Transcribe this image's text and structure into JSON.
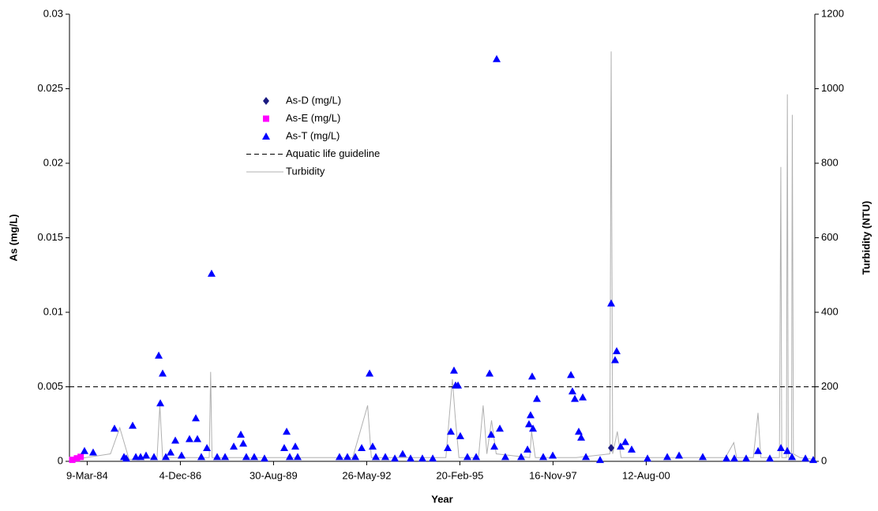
{
  "chart_data": {
    "type": "scatter",
    "x_label": "Year",
    "y_label": "As (mg/L)",
    "y2_label": "Turbidity (NTU)",
    "xlim": [
      30560,
      38560
    ],
    "xticks": [
      {
        "value": 30750,
        "label": "9-Mar-84"
      },
      {
        "value": 31750,
        "label": "4-Dec-86"
      },
      {
        "value": 32750,
        "label": "30-Aug-89"
      },
      {
        "value": 33750,
        "label": "26-May-92"
      },
      {
        "value": 34750,
        "label": "20-Feb-95"
      },
      {
        "value": 35750,
        "label": "16-Nov-97"
      },
      {
        "value": 36750,
        "label": "12-Aug-00"
      }
    ],
    "ylim": [
      0,
      0.03
    ],
    "yticks": [
      0,
      0.005,
      0.01,
      0.015,
      0.02,
      0.025,
      0.03
    ],
    "y2lim": [
      0,
      1200
    ],
    "y2ticks": [
      0,
      200,
      400,
      600,
      800,
      1000,
      1200
    ],
    "grid": false,
    "series": [
      {
        "name": "As-D (mg/L)",
        "marker": "diamond",
        "color": "#1a1a80",
        "x": [
          36374
        ],
        "values": [
          0.0009
        ]
      },
      {
        "name": "As-E (mg/L)",
        "marker": "square",
        "color": "#ff00ff",
        "x": [
          30590,
          30640,
          30680
        ],
        "values": [
          0.0001,
          0.0002,
          0.0003
        ]
      },
      {
        "name": "As-T (mg/L)",
        "marker": "triangle",
        "color": "#0000ff",
        "x": [
          30721,
          30814,
          31043,
          31145,
          31170,
          31238,
          31272,
          31323,
          31382,
          31467,
          31518,
          31535,
          31560,
          31594,
          31645,
          31696,
          31763,
          31848,
          31916,
          31933,
          31975,
          32035,
          32085,
          32145,
          32230,
          32323,
          32399,
          32425,
          32458,
          32543,
          32653,
          32865,
          32891,
          32924,
          32984,
          33009,
          33458,
          33543,
          33628,
          33696,
          33781,
          33814,
          33848,
          33950,
          34052,
          34136,
          34221,
          34348,
          34459,
          34620,
          34653,
          34687,
          34704,
          34730,
          34755,
          34831,
          34925,
          35069,
          35086,
          35120,
          35145,
          35179,
          35238,
          35408,
          35476,
          35492,
          35509,
          35526,
          35535,
          35577,
          35645,
          35747,
          35942,
          35958,
          35984,
          36026,
          36052,
          36069,
          36103,
          36255,
          36374,
          36416,
          36433,
          36476,
          36526,
          36594,
          36764,
          36976,
          37103,
          37357,
          37611,
          37696,
          37823,
          37950,
          38077,
          38196,
          38264,
          38315,
          38459,
          38543
        ],
        "values": [
          0.0007,
          0.0006,
          0.0022,
          0.0003,
          0.0002,
          0.0024,
          0.0003,
          0.0003,
          0.0004,
          0.0003,
          0.0071,
          0.0039,
          0.0059,
          0.0003,
          0.0006,
          0.0014,
          0.0004,
          0.0015,
          0.0029,
          0.0015,
          0.0003,
          0.0009,
          0.0126,
          0.0003,
          0.0003,
          0.001,
          0.0018,
          0.0012,
          0.0003,
          0.0003,
          0.0002,
          0.0009,
          0.002,
          0.0003,
          0.001,
          0.0003,
          0.0003,
          0.0003,
          0.0003,
          0.0009,
          0.0059,
          0.001,
          0.0003,
          0.0003,
          0.0002,
          0.0005,
          0.0002,
          0.0002,
          0.0002,
          0.0009,
          0.002,
          0.0061,
          0.0051,
          0.0051,
          0.0017,
          0.0003,
          0.0003,
          0.0059,
          0.0018,
          0.001,
          0.027,
          0.0022,
          0.0003,
          0.0003,
          0.0008,
          0.0025,
          0.0031,
          0.0057,
          0.0022,
          0.0042,
          0.0003,
          0.0004,
          0.0058,
          0.0047,
          0.0042,
          0.002,
          0.0016,
          0.0043,
          0.0003,
          0.0001,
          0.0106,
          0.0068,
          0.0074,
          0.001,
          0.0013,
          0.0008,
          0.0002,
          0.0003,
          0.0004,
          0.0003,
          0.0002,
          0.0002,
          0.0002,
          0.0007,
          0.0002,
          0.0009,
          0.0007,
          0.0003,
          0.0002,
          0.0001
        ]
      },
      {
        "name": "Aquatic life guideline",
        "marker": "hline",
        "color": "#000000",
        "values": [
          0.005
        ]
      },
      {
        "name": "Turbidity",
        "marker": "line",
        "color": "#b0b0b0",
        "axis": "y2",
        "x": [
          30600,
          31000,
          31100,
          31200,
          31500,
          31530,
          31560,
          32060,
          32075,
          32090,
          32500,
          33600,
          33760,
          33800,
          34600,
          34670,
          34700,
          34740,
          34950,
          35000,
          35040,
          35090,
          35140,
          35500,
          35520,
          35560,
          36000,
          36360,
          36374,
          36390,
          36440,
          36480,
          37000,
          37600,
          37690,
          37720,
          37900,
          37950,
          37980,
          38180,
          38195,
          38205,
          38255,
          38265,
          38275,
          38310,
          38318,
          38330,
          38400,
          38550
        ],
        "values": [
          5,
          20,
          90,
          5,
          10,
          150,
          10,
          10,
          240,
          10,
          10,
          10,
          150,
          10,
          10,
          220,
          120,
          10,
          10,
          150,
          20,
          110,
          20,
          10,
          80,
          10,
          10,
          20,
          1100,
          20,
          80,
          10,
          10,
          10,
          50,
          10,
          10,
          130,
          10,
          10,
          790,
          10,
          10,
          985,
          10,
          10,
          930,
          20,
          10,
          5
        ]
      }
    ]
  }
}
